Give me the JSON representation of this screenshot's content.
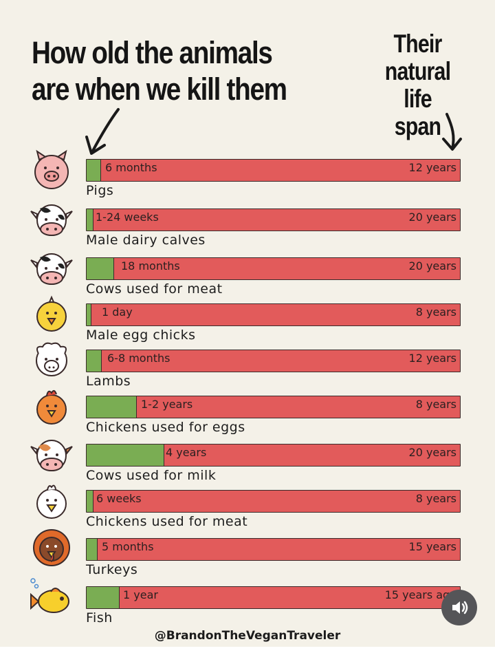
{
  "header": {
    "title": "How old the animals are when we kill them",
    "lifespan_label": "Their natural life span"
  },
  "credit": "@BrandonTheVeganTraveler",
  "colors": {
    "life_bar": "#e25b5b",
    "age_fill": "#7aad53",
    "background": "#f4f1e8"
  },
  "chart_data": {
    "type": "bar",
    "title": "How old the animals are when we kill them",
    "xlabel": "",
    "ylabel": "",
    "series": [
      {
        "name": "How old the animals are when we kill them",
        "values": [
          0.5,
          0.25,
          1.5,
          0.003,
          0.58,
          1.5,
          4,
          0.12,
          0.42,
          1
        ]
      },
      {
        "name": "Their natural life span",
        "values": [
          12,
          20,
          20,
          8,
          12,
          8,
          20,
          8,
          15,
          15
        ]
      }
    ],
    "categories": [
      "Pigs",
      "Male dairy calves",
      "Cows used for meat",
      "Male egg chicks",
      "Lambs",
      "Chickens used for eggs",
      "Cows used for milk",
      "Chickens used for meat",
      "Turkeys",
      "Fish"
    ],
    "rows": [
      {
        "animal": "Pigs",
        "icon": "pig-icon",
        "age_label": "6 months",
        "life_label": "12 years",
        "age_years": 0.5,
        "life_years": 12
      },
      {
        "animal": "Male dairy calves",
        "icon": "calf-icon",
        "age_label": "1-24 weeks",
        "life_label": "20 years",
        "age_years": 0.25,
        "life_years": 20
      },
      {
        "animal": "Cows used for meat",
        "icon": "cow-icon",
        "age_label": "18 months",
        "life_label": "20 years",
        "age_years": 1.5,
        "life_years": 20
      },
      {
        "animal": "Male egg chicks",
        "icon": "chick-icon",
        "age_label": "1 day",
        "life_label": "8 years",
        "age_years": 0.003,
        "life_years": 8
      },
      {
        "animal": "Lambs",
        "icon": "lamb-icon",
        "age_label": "6-8 months",
        "life_label": "12 years",
        "age_years": 0.58,
        "life_years": 12
      },
      {
        "animal": "Chickens used for eggs",
        "icon": "hen-icon",
        "age_label": "1-2 years",
        "life_label": "8 years",
        "age_years": 1.5,
        "life_years": 8
      },
      {
        "animal": "Cows used for milk",
        "icon": "dairy-cow-icon",
        "age_label": "4 years",
        "life_label": "20 years",
        "age_years": 4,
        "life_years": 20
      },
      {
        "animal": "Chickens used for meat",
        "icon": "broiler-chicken-icon",
        "age_label": "6 weeks",
        "life_label": "8 years",
        "age_years": 0.12,
        "life_years": 8
      },
      {
        "animal": "Turkeys",
        "icon": "turkey-icon",
        "age_label": "5 months",
        "life_label": "15 years",
        "age_years": 0.42,
        "life_years": 15
      },
      {
        "animal": "Fish",
        "icon": "fish-icon",
        "age_label": "1 year",
        "life_label": "15 years ago",
        "age_years": 1,
        "life_years": 15
      }
    ]
  }
}
